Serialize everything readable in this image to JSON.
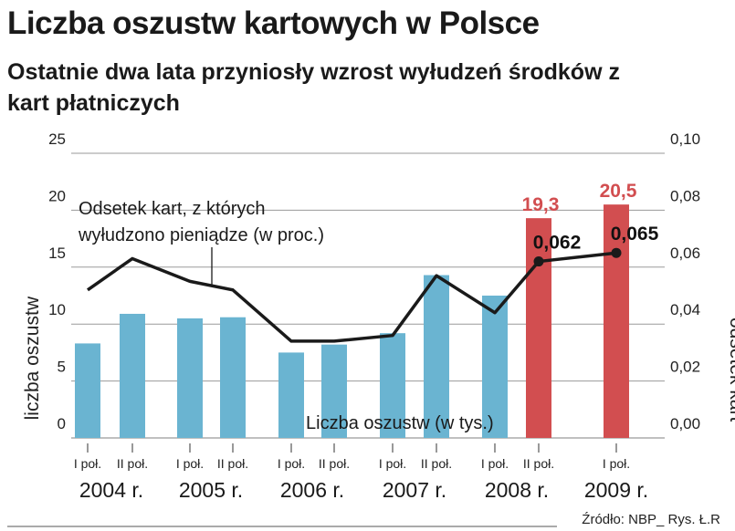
{
  "header": {
    "title": "Liczba oszustw kartowych w Polsce",
    "subtitle": "Ostatnie dwa lata przyniosły wzrost wyłudzeń środków z kart płatniczych"
  },
  "source": "Źródło: NBP_ Rys. Ł.R",
  "colors": {
    "bar_default": "#6ab4d1",
    "bar_highlight": "#d24e50",
    "line": "#1a1a1a",
    "grid": "#9a9a9a",
    "label_highlight": "#d24e50"
  },
  "chart_data": {
    "type": "bar",
    "categories": [
      "I poł.",
      "II poł.",
      "I poł.",
      "II poł.",
      "I poł.",
      "II poł.",
      "I poł.",
      "II poł.",
      "I poł.",
      "II poł.",
      "I poł."
    ],
    "years": [
      "2004 r.",
      "2005 r.",
      "2006 r.",
      "2007 r.",
      "2008 r.",
      "2009 r."
    ],
    "series": [
      {
        "name": "Liczba oszustw (w tys.)",
        "axis": "left",
        "values": [
          8.3,
          10.9,
          10.5,
          10.6,
          7.5,
          8.2,
          9.2,
          14.3,
          12.5,
          19.3,
          20.5
        ],
        "highlight": [
          false,
          false,
          false,
          false,
          false,
          false,
          false,
          false,
          false,
          true,
          true
        ],
        "data_labels": [
          "",
          "",
          "",
          "",
          "",
          "",
          "",
          "",
          "",
          "19,3",
          "20,5"
        ]
      },
      {
        "name": "Odsetek kart, z których wyłudzono pieniądze (w proc.)",
        "axis": "right",
        "type": "line",
        "values": [
          0.052,
          0.063,
          0.055,
          0.052,
          0.034,
          0.034,
          0.036,
          0.057,
          0.044,
          0.062,
          0.065
        ],
        "data_labels": [
          "",
          "",
          "",
          "",
          "",
          "",
          "",
          "",
          "",
          "0,062",
          "0,065"
        ]
      }
    ],
    "left_axis": {
      "label": "liczba oszustw",
      "ticks": [
        "0",
        "5",
        "10",
        "15",
        "20",
        "25"
      ],
      "range": [
        0,
        25
      ]
    },
    "right_axis": {
      "label": "odsetek kart",
      "ticks": [
        "0,00",
        "0,02",
        "0,04",
        "0,06",
        "0,08",
        "0,10"
      ],
      "range": [
        0,
        0.1
      ]
    },
    "bar_series_caption": "Liczba oszustw (w tys.)",
    "line_annotation": "Odsetek kart, z których wyłudzono pieniądze (w proc.)",
    "line_annotation_lines": [
      "Odsetek kart, z których",
      "wyłudzono pieniądze (w proc.)"
    ],
    "grid": true
  }
}
